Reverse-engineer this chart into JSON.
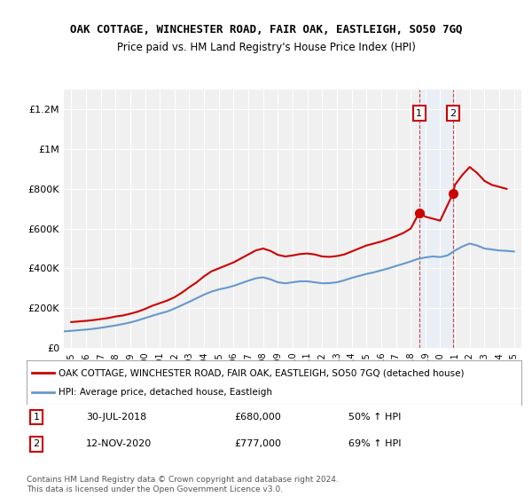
{
  "title": "OAK COTTAGE, WINCHESTER ROAD, FAIR OAK, EASTLEIGH, SO50 7GQ",
  "subtitle": "Price paid vs. HM Land Registry's House Price Index (HPI)",
  "ylabel_ticks": [
    "£0",
    "£200K",
    "£400K",
    "£600K",
    "£800K",
    "£1M",
    "£1.2M"
  ],
  "ytick_vals": [
    0,
    200000,
    400000,
    600000,
    800000,
    1000000,
    1200000
  ],
  "ylim": [
    0,
    1300000
  ],
  "xlim_start": 1994.5,
  "xlim_end": 2025.5,
  "legend_red": "OAK COTTAGE, WINCHESTER ROAD, FAIR OAK, EASTLEIGH, SO50 7GQ (detached house)",
  "legend_blue": "HPI: Average price, detached house, Eastleigh",
  "transaction1_date": "30-JUL-2018",
  "transaction1_price": "£680,000",
  "transaction1_hpi": "50% ↑ HPI",
  "transaction1_year": 2018.58,
  "transaction1_val": 680000,
  "transaction2_date": "12-NOV-2020",
  "transaction2_price": "£777,000",
  "transaction2_hpi": "69% ↑ HPI",
  "transaction2_year": 2020.87,
  "transaction2_val": 777000,
  "background_color": "#ffffff",
  "plot_bg_color": "#f0f0f0",
  "grid_color": "#ffffff",
  "red_color": "#cc0000",
  "blue_color": "#6699cc",
  "highlight_color": "#ddeeff",
  "footer_text": "Contains HM Land Registry data © Crown copyright and database right 2024.\nThis data is licensed under the Open Government Licence v3.0.",
  "red_x": [
    1995.0,
    1995.5,
    1996.0,
    1996.5,
    1997.0,
    1997.5,
    1998.0,
    1998.5,
    1999.0,
    1999.5,
    2000.0,
    2000.5,
    2001.0,
    2001.5,
    2002.0,
    2002.5,
    2003.0,
    2003.5,
    2004.0,
    2004.5,
    2005.0,
    2005.5,
    2006.0,
    2006.5,
    2007.0,
    2007.5,
    2008.0,
    2008.5,
    2009.0,
    2009.5,
    2010.0,
    2010.5,
    2011.0,
    2011.5,
    2012.0,
    2012.5,
    2013.0,
    2013.5,
    2014.0,
    2014.5,
    2015.0,
    2015.5,
    2016.0,
    2016.5,
    2017.0,
    2017.5,
    2018.0,
    2018.58,
    2019.0,
    2019.5,
    2020.0,
    2020.87,
    2021.0,
    2021.5,
    2022.0,
    2022.5,
    2023.0,
    2023.5,
    2024.0,
    2024.5
  ],
  "red_y": [
    130000,
    133000,
    136000,
    140000,
    145000,
    150000,
    158000,
    163000,
    172000,
    182000,
    196000,
    212000,
    225000,
    238000,
    255000,
    278000,
    305000,
    330000,
    360000,
    385000,
    400000,
    415000,
    430000,
    450000,
    470000,
    490000,
    500000,
    488000,
    468000,
    460000,
    465000,
    472000,
    475000,
    470000,
    460000,
    458000,
    462000,
    470000,
    485000,
    500000,
    515000,
    525000,
    535000,
    548000,
    562000,
    578000,
    600000,
    680000,
    660000,
    650000,
    640000,
    777000,
    820000,
    870000,
    910000,
    880000,
    840000,
    820000,
    810000,
    800000
  ],
  "blue_x": [
    1994.5,
    1995.0,
    1995.5,
    1996.0,
    1996.5,
    1997.0,
    1997.5,
    1998.0,
    1998.5,
    1999.0,
    1999.5,
    2000.0,
    2000.5,
    2001.0,
    2001.5,
    2002.0,
    2002.5,
    2003.0,
    2003.5,
    2004.0,
    2004.5,
    2005.0,
    2005.5,
    2006.0,
    2006.5,
    2007.0,
    2007.5,
    2008.0,
    2008.5,
    2009.0,
    2009.5,
    2010.0,
    2010.5,
    2011.0,
    2011.5,
    2012.0,
    2012.5,
    2013.0,
    2013.5,
    2014.0,
    2014.5,
    2015.0,
    2015.5,
    2016.0,
    2016.5,
    2017.0,
    2017.5,
    2018.0,
    2018.5,
    2019.0,
    2019.5,
    2020.0,
    2020.5,
    2021.0,
    2021.5,
    2022.0,
    2022.5,
    2023.0,
    2023.5,
    2024.0,
    2024.5,
    2025.0
  ],
  "blue_y": [
    83000,
    86000,
    89000,
    92000,
    96000,
    101000,
    107000,
    113000,
    120000,
    128000,
    138000,
    150000,
    162000,
    173000,
    183000,
    198000,
    215000,
    232000,
    250000,
    268000,
    283000,
    294000,
    302000,
    312000,
    325000,
    338000,
    350000,
    355000,
    345000,
    330000,
    325000,
    330000,
    335000,
    335000,
    330000,
    325000,
    326000,
    330000,
    340000,
    352000,
    362000,
    372000,
    380000,
    390000,
    400000,
    412000,
    423000,
    435000,
    448000,
    455000,
    460000,
    457000,
    465000,
    490000,
    510000,
    525000,
    515000,
    500000,
    495000,
    490000,
    488000,
    485000
  ]
}
